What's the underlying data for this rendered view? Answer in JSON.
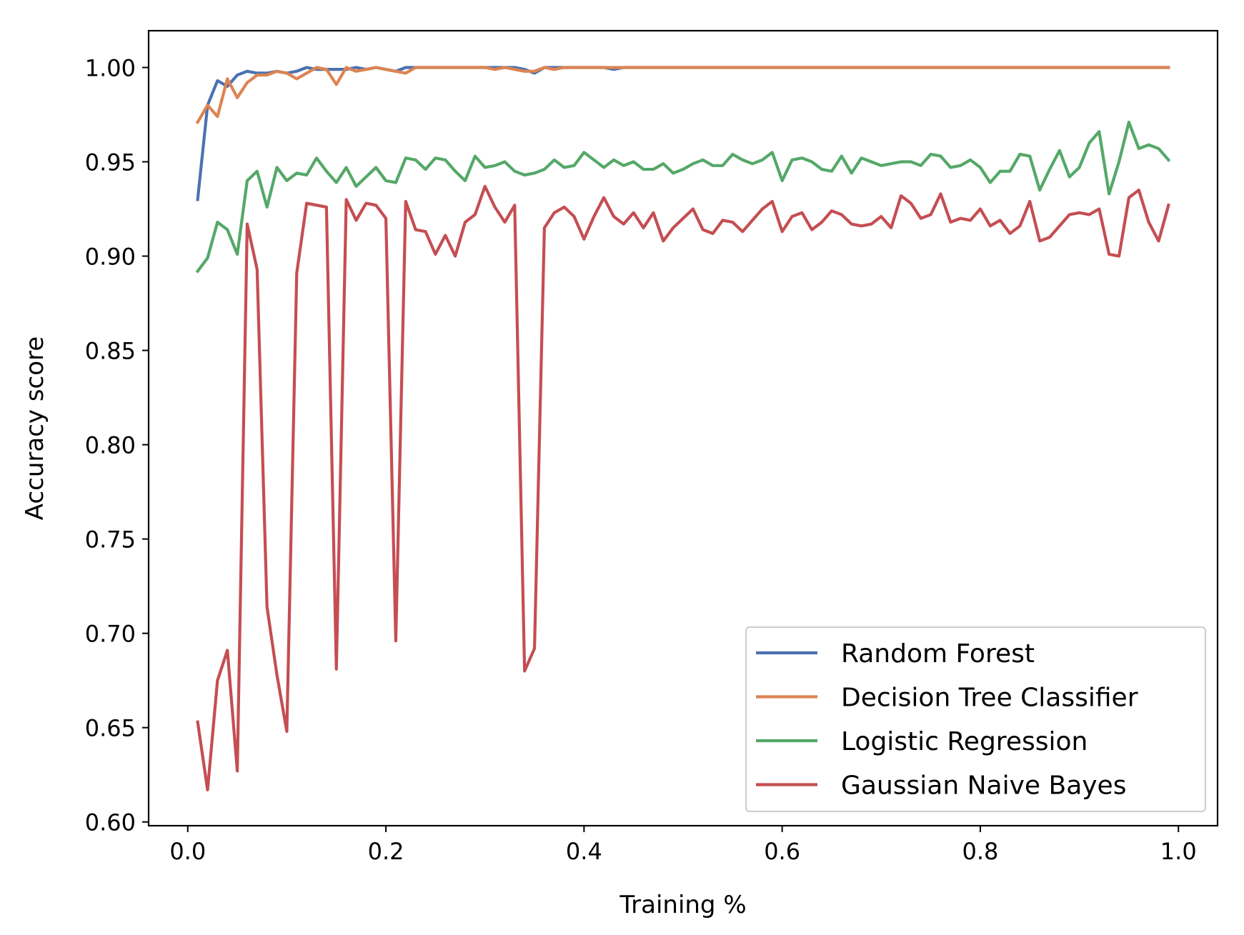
{
  "chart_data": {
    "type": "line",
    "title": "",
    "xlabel": "Training %",
    "ylabel": "Accuracy score",
    "xlim": [
      -0.0395,
      1.0395
    ],
    "ylim": [
      0.598,
      1.0195
    ],
    "xticks": [
      0.0,
      0.2,
      0.4,
      0.6,
      0.8,
      1.0
    ],
    "xtick_labels": [
      "0.0",
      "0.2",
      "0.4",
      "0.6",
      "0.8",
      "1.0"
    ],
    "yticks": [
      0.6,
      0.65,
      0.7,
      0.75,
      0.8,
      0.85,
      0.9,
      0.95,
      1.0
    ],
    "ytick_labels": [
      "0.60",
      "0.65",
      "0.70",
      "0.75",
      "0.80",
      "0.85",
      "0.90",
      "0.95",
      "1.00"
    ],
    "grid": false,
    "legend_position": "lower-right",
    "x": [
      0.01,
      0.02,
      0.03,
      0.04,
      0.05,
      0.06,
      0.07,
      0.08,
      0.09,
      0.1,
      0.11,
      0.12,
      0.13,
      0.14,
      0.15,
      0.16,
      0.17,
      0.18,
      0.19,
      0.2,
      0.21,
      0.22,
      0.23,
      0.24,
      0.25,
      0.26,
      0.27,
      0.28,
      0.29,
      0.3,
      0.31,
      0.32,
      0.33,
      0.34,
      0.35,
      0.36,
      0.37,
      0.38,
      0.39,
      0.4,
      0.41,
      0.42,
      0.43,
      0.44,
      0.45,
      0.46,
      0.47,
      0.48,
      0.49,
      0.5,
      0.51,
      0.52,
      0.53,
      0.54,
      0.55,
      0.56,
      0.57,
      0.58,
      0.59,
      0.6,
      0.61,
      0.62,
      0.63,
      0.64,
      0.65,
      0.66,
      0.67,
      0.68,
      0.69,
      0.7,
      0.71,
      0.72,
      0.73,
      0.74,
      0.75,
      0.76,
      0.77,
      0.78,
      0.79,
      0.8,
      0.81,
      0.82,
      0.83,
      0.84,
      0.85,
      0.86,
      0.87,
      0.88,
      0.89,
      0.9,
      0.91,
      0.92,
      0.93,
      0.94,
      0.95,
      0.96,
      0.97,
      0.98,
      0.99
    ],
    "series": [
      {
        "name": "Random Forest",
        "color": "#4c72b0",
        "values": [
          0.93,
          0.98,
          0.993,
          0.99,
          0.996,
          0.998,
          0.997,
          0.997,
          0.998,
          0.997,
          0.998,
          1.0,
          0.999,
          0.999,
          0.999,
          0.999,
          1.0,
          0.999,
          1.0,
          0.999,
          0.998,
          1.0,
          1.0,
          1.0,
          1.0,
          1.0,
          1.0,
          1.0,
          1.0,
          1.0,
          1.0,
          1.0,
          1.0,
          0.999,
          0.997,
          1.0,
          1.0,
          1.0,
          1.0,
          1.0,
          1.0,
          1.0,
          0.999,
          1.0,
          1.0,
          1.0,
          1.0,
          1.0,
          1.0,
          1.0,
          1.0,
          1.0,
          1.0,
          1.0,
          1.0,
          1.0,
          1.0,
          1.0,
          1.0,
          1.0,
          1.0,
          1.0,
          1.0,
          1.0,
          1.0,
          1.0,
          1.0,
          1.0,
          1.0,
          1.0,
          1.0,
          1.0,
          1.0,
          1.0,
          1.0,
          1.0,
          1.0,
          1.0,
          1.0,
          1.0,
          1.0,
          1.0,
          1.0,
          1.0,
          1.0,
          1.0,
          1.0,
          1.0,
          1.0,
          1.0,
          1.0,
          1.0,
          1.0,
          1.0,
          1.0,
          1.0,
          1.0,
          1.0,
          1.0
        ]
      },
      {
        "name": "Decision Tree Classifier",
        "color": "#dd8452",
        "values": [
          0.971,
          0.98,
          0.974,
          0.994,
          0.984,
          0.992,
          0.996,
          0.996,
          0.998,
          0.997,
          0.994,
          0.997,
          1.0,
          0.999,
          0.991,
          1.0,
          0.998,
          0.999,
          1.0,
          0.999,
          0.998,
          0.997,
          1.0,
          1.0,
          1.0,
          1.0,
          1.0,
          1.0,
          1.0,
          1.0,
          0.999,
          1.0,
          0.999,
          0.998,
          0.998,
          1.0,
          0.999,
          1.0,
          1.0,
          1.0,
          1.0,
          1.0,
          1.0,
          1.0,
          1.0,
          1.0,
          1.0,
          1.0,
          1.0,
          1.0,
          1.0,
          1.0,
          1.0,
          1.0,
          1.0,
          1.0,
          1.0,
          1.0,
          1.0,
          1.0,
          1.0,
          1.0,
          1.0,
          1.0,
          1.0,
          1.0,
          1.0,
          1.0,
          1.0,
          1.0,
          1.0,
          1.0,
          1.0,
          1.0,
          1.0,
          1.0,
          1.0,
          1.0,
          1.0,
          1.0,
          1.0,
          1.0,
          1.0,
          1.0,
          1.0,
          1.0,
          1.0,
          1.0,
          1.0,
          1.0,
          1.0,
          1.0,
          1.0,
          1.0,
          1.0,
          1.0,
          1.0,
          1.0,
          1.0
        ]
      },
      {
        "name": "Logistic Regression",
        "color": "#55a868",
        "values": [
          0.892,
          0.899,
          0.918,
          0.914,
          0.901,
          0.94,
          0.945,
          0.926,
          0.947,
          0.94,
          0.944,
          0.943,
          0.952,
          0.945,
          0.939,
          0.947,
          0.937,
          0.942,
          0.947,
          0.94,
          0.939,
          0.952,
          0.951,
          0.946,
          0.952,
          0.951,
          0.945,
          0.94,
          0.953,
          0.947,
          0.948,
          0.95,
          0.945,
          0.943,
          0.944,
          0.946,
          0.951,
          0.947,
          0.948,
          0.955,
          0.951,
          0.947,
          0.951,
          0.948,
          0.95,
          0.946,
          0.946,
          0.949,
          0.944,
          0.946,
          0.949,
          0.951,
          0.948,
          0.948,
          0.954,
          0.951,
          0.949,
          0.951,
          0.955,
          0.94,
          0.951,
          0.952,
          0.95,
          0.946,
          0.945,
          0.953,
          0.944,
          0.952,
          0.95,
          0.948,
          0.949,
          0.95,
          0.95,
          0.948,
          0.954,
          0.953,
          0.947,
          0.948,
          0.951,
          0.947,
          0.939,
          0.945,
          0.945,
          0.954,
          0.953,
          0.935,
          0.946,
          0.956,
          0.942,
          0.947,
          0.96,
          0.966,
          0.933,
          0.95,
          0.971,
          0.957,
          0.959,
          0.957,
          0.951
        ]
      },
      {
        "name": "Gaussian Naive Bayes",
        "color": "#c44e52",
        "values": [
          0.653,
          0.617,
          0.675,
          0.691,
          0.627,
          0.917,
          0.893,
          0.714,
          0.678,
          0.648,
          0.891,
          0.928,
          0.927,
          0.926,
          0.681,
          0.93,
          0.919,
          0.928,
          0.927,
          0.92,
          0.696,
          0.929,
          0.914,
          0.913,
          0.901,
          0.911,
          0.9,
          0.918,
          0.922,
          0.937,
          0.926,
          0.918,
          0.927,
          0.68,
          0.692,
          0.915,
          0.923,
          0.926,
          0.921,
          0.909,
          0.921,
          0.931,
          0.921,
          0.917,
          0.923,
          0.915,
          0.923,
          0.908,
          0.915,
          0.92,
          0.925,
          0.914,
          0.912,
          0.919,
          0.918,
          0.913,
          0.919,
          0.925,
          0.929,
          0.913,
          0.921,
          0.923,
          0.914,
          0.918,
          0.924,
          0.922,
          0.917,
          0.916,
          0.917,
          0.921,
          0.915,
          0.932,
          0.928,
          0.92,
          0.922,
          0.933,
          0.918,
          0.92,
          0.919,
          0.925,
          0.916,
          0.919,
          0.912,
          0.916,
          0.929,
          0.908,
          0.91,
          0.916,
          0.922,
          0.923,
          0.922,
          0.925,
          0.901,
          0.9,
          0.931,
          0.935,
          0.918,
          0.908,
          0.927
        ]
      }
    ]
  }
}
